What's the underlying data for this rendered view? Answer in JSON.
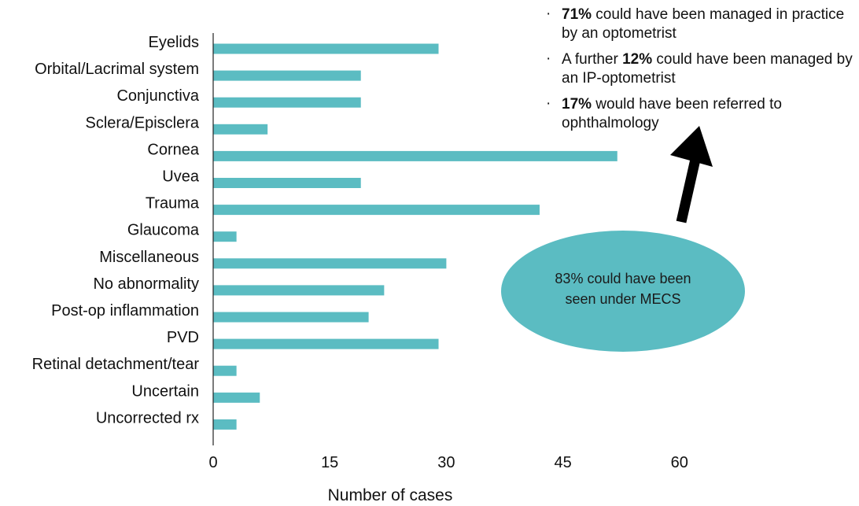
{
  "chart_data": {
    "type": "bar",
    "orientation": "horizontal",
    "categories": [
      "Eyelids",
      "Orbital/Lacrimal system",
      "Conjunctiva",
      "Sclera/Episclera",
      "Cornea",
      "Uvea",
      "Trauma",
      "Glaucoma",
      "Miscellaneous",
      "No abnormality",
      "Post-op inflammation",
      "PVD",
      "Retinal detachment/tear",
      "Uncertain",
      "Uncorrected rx"
    ],
    "values": [
      29,
      19,
      19,
      7,
      52,
      19,
      42,
      3,
      30,
      22,
      20,
      29,
      3,
      6,
      3
    ],
    "xlabel": "Number of cases",
    "ylabel": "",
    "xlim": [
      0,
      60
    ],
    "xticks": [
      "0",
      "15",
      "30",
      "45",
      "60"
    ],
    "grid": false,
    "bar_color": "#5bbcc2"
  },
  "annotations": {
    "notes": [
      {
        "pct": "71%",
        "pre": "",
        "post": " could have been managed in practice by an optometrist"
      },
      {
        "pct": "12%",
        "pre": "A further ",
        "post": " could have been managed by an IP-optometrist"
      },
      {
        "pct": "17%",
        "pre": "",
        "post": " would have been referred to ophthalmology"
      }
    ],
    "bullet_symbol": "·",
    "ellipse_line1": "83% could have been",
    "ellipse_line2": "seen under MECS",
    "ellipse_color": "#5bbcc2",
    "arrow_color": "#000000"
  }
}
